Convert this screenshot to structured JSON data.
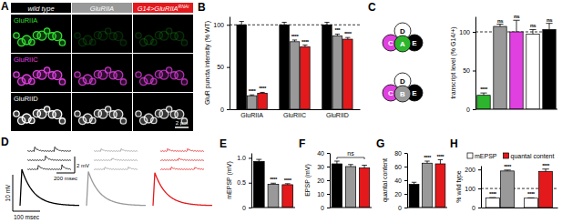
{
  "panel_a": {
    "panel": "A",
    "columns": [
      {
        "text": "wild type"
      },
      {
        "text": "GluRIIA"
      },
      {
        "text": "G14>GluRIIA",
        "sup": "RNAi"
      }
    ],
    "rows": [
      {
        "text": "GluRIIA",
        "color": "#33dd33"
      },
      {
        "text": "GluRIIC",
        "color": "#e040e0"
      },
      {
        "text": "GluRIID",
        "color": "#ffffff"
      }
    ],
    "scale_bar": "2 μm"
  },
  "panel_c_diagrams": [
    {
      "left": "C",
      "top": "D",
      "center": "A",
      "right": "E",
      "center_color": "#2db52d"
    },
    {
      "left": "C",
      "top": "D",
      "center": "B",
      "right": "E",
      "center_color": "#999999"
    }
  ],
  "panel_d": {
    "panel": "D",
    "scale_bars": [
      "10 mV",
      "100 msec",
      "2 mV",
      "200 msec"
    ]
  },
  "chart_data": [
    {
      "panel": "B",
      "type": "bar",
      "y_label": "GluR puncta intensity (% WT)",
      "categories": [
        "GluRIIA",
        "GluRIIC",
        "GluRIID"
      ],
      "series": [
        {
          "color": "#000000",
          "values": [
            100,
            100,
            100
          ],
          "errors": [
            4,
            3,
            3
          ]
        },
        {
          "color": "#999999",
          "values": [
            16,
            80,
            87
          ],
          "errors": [
            1,
            2,
            2
          ],
          "annotations": [
            "****",
            "****",
            "***"
          ]
        },
        {
          "color": "#e3191c",
          "values": [
            19,
            74,
            83
          ],
          "errors": [
            1,
            2,
            2
          ],
          "annotations": [
            "****",
            "****",
            "****"
          ]
        }
      ],
      "ylim": [
        0,
        110
      ],
      "yticks": [
        0,
        50,
        100
      ],
      "ref_line": 100
    },
    {
      "panel": "C",
      "type": "bar",
      "y_label": "transcript level (% G14/+)",
      "values": [
        18,
        107,
        100,
        97,
        103
      ],
      "errors": [
        3,
        3,
        15,
        6,
        8
      ],
      "colors": [
        "#2db52d",
        "#999999",
        "#e040e0",
        "#ffffff",
        "#000000"
      ],
      "annotations": [
        "****",
        "ns",
        "ns",
        "ns",
        "ns"
      ],
      "ylim": [
        0,
        120
      ],
      "yticks": [
        0,
        50,
        100
      ],
      "ref_line": 100
    },
    {
      "panel": "E",
      "type": "bar",
      "y_label": "mEPSP (mV)",
      "values": [
        0.93,
        0.47,
        0.46
      ],
      "errors": [
        0.04,
        0.02,
        0.02
      ],
      "colors": [
        "#000000",
        "#999999",
        "#e3191c"
      ],
      "annotations": [
        null,
        "****",
        "****"
      ],
      "ylim": [
        0,
        1.1
      ],
      "yticks": [
        0,
        0.5,
        {
          "value": 1,
          "label": "1.0"
        }
      ]
    },
    {
      "panel": "F",
      "type": "bar",
      "y_label": "EPSP (mV)",
      "values": [
        32,
        30,
        29
      ],
      "errors": [
        2,
        1.5,
        2
      ],
      "colors": [
        "#000000",
        "#999999",
        "#e3191c"
      ],
      "bracket_label": "ns",
      "ylim": [
        0,
        40
      ],
      "yticks": [
        0,
        10,
        20,
        30,
        40
      ]
    },
    {
      "panel": "G",
      "type": "bar",
      "y_label": "quantal content",
      "values": [
        34,
        65,
        64
      ],
      "errors": [
        3,
        3,
        6
      ],
      "colors": [
        "#000000",
        "#999999",
        "#e3191c"
      ],
      "annotations": [
        null,
        "****",
        "****"
      ],
      "ylim": [
        0,
        80
      ],
      "yticks": [
        0,
        20,
        40,
        60,
        80
      ]
    },
    {
      "panel": "H",
      "type": "bar",
      "y_label": "% wild type",
      "categories": [
        null,
        null
      ],
      "series": [
        {
          "name": "mEPSP",
          "color": "#ffffff",
          "values": [
            50,
            49
          ],
          "errors": [
            2,
            2
          ],
          "annotations": [
            "****",
            "****"
          ]
        },
        {
          "name": "quantal content",
          "color": "#e3191c",
          "colors": [
            "#999999",
            "#e3191c"
          ],
          "values": [
            192,
            190
          ],
          "errors": [
            5,
            12
          ],
          "annotations": [
            "****",
            "****"
          ]
        }
      ],
      "ylim": [
        0,
        220
      ],
      "yticks": [
        0,
        100,
        200
      ],
      "ref_line": 100,
      "legend": "top"
    }
  ]
}
